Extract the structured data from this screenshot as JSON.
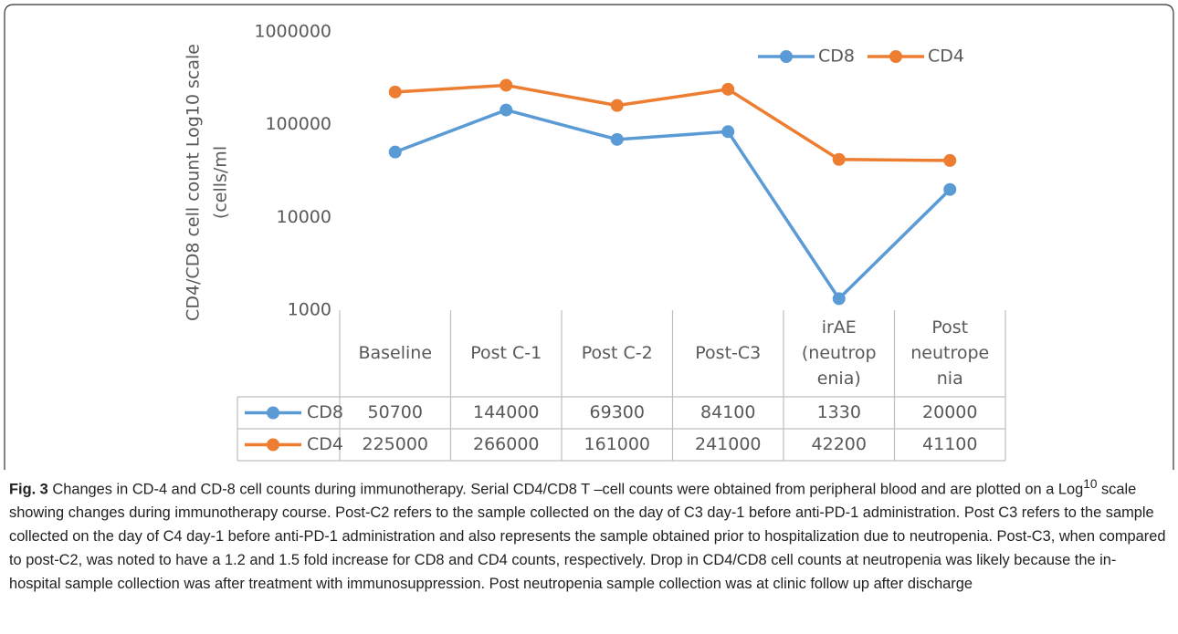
{
  "chart_data": {
    "type": "line",
    "ylabel": [
      "CD4/CD8 cell count Log10 scale",
      "(cells/ml"
    ],
    "categories": [
      [
        "Baseline"
      ],
      [
        "Post C-1"
      ],
      [
        "Post C-2"
      ],
      [
        "Post-C3"
      ],
      [
        "irAE",
        "(neutrop",
        "enia)"
      ],
      [
        "Post",
        "neutrope",
        "nia"
      ]
    ],
    "series": [
      {
        "name": "CD8",
        "color": "#5b9bd5",
        "values": [
          50700,
          144000,
          69300,
          84100,
          1330,
          20000
        ]
      },
      {
        "name": "CD4",
        "color": "#ed7d31",
        "values": [
          225000,
          266000,
          161000,
          241000,
          42200,
          41100
        ]
      }
    ],
    "ylim": [
      1000,
      1000000
    ],
    "yticks": [
      1000,
      10000,
      100000,
      1000000
    ],
    "log_scale": true,
    "grid": false,
    "legend": "top-right",
    "data_table": true
  },
  "caption": {
    "label": "Fig. 3",
    "before": "Changes in CD-4 and CD-8 cell counts during immunotherapy. Serial CD4/CD8 T –cell counts were obtained from peripheral blood and are plotted on a Log",
    "sup": "10",
    "after": " scale showing changes during immunotherapy course. Post-C2 refers to the sample collected on the day of C3 day-1 before anti-PD-1 administration. Post C3 refers to the sample collected on the day of C4 day-1 before anti-PD-1 administration and also represents the sample obtained prior to hospitalization due to neutropenia. Post-C3, when compared to post-C2, was noted to have a 1.2 and 1.5 fold increase for CD8 and CD4 counts, respectively. Drop in CD4/CD8 cell counts at neutropenia was likely because the in-hospital sample collection was after treatment with immunosuppression. Post neutropenia sample collection was at clinic follow up after discharge"
  }
}
